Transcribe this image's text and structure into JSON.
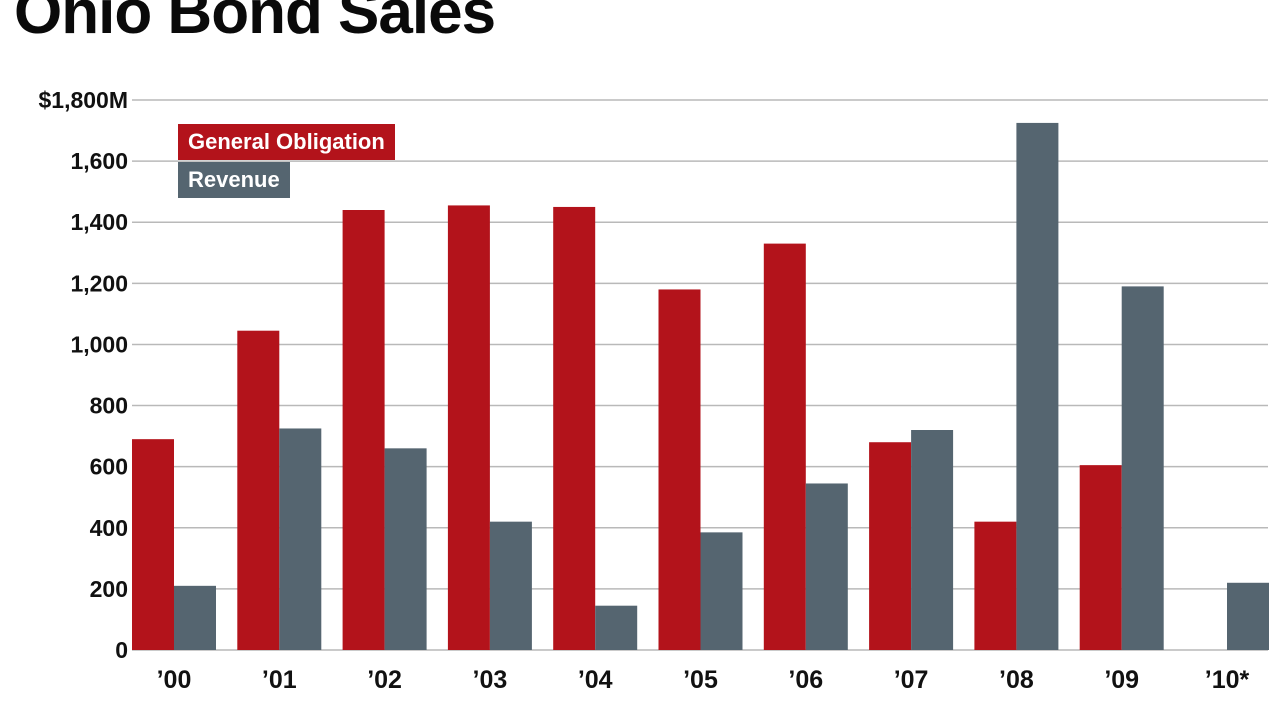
{
  "chart_data": {
    "type": "bar",
    "title": "Ohio Bond Sales",
    "xlabel": "",
    "ylabel": "",
    "ylim": [
      0,
      1800
    ],
    "yticks": [
      {
        "value": 0,
        "label": "0"
      },
      {
        "value": 200,
        "label": "200"
      },
      {
        "value": 400,
        "label": "400"
      },
      {
        "value": 600,
        "label": "600"
      },
      {
        "value": 800,
        "label": "800"
      },
      {
        "value": 1000,
        "label": "1,000"
      },
      {
        "value": 1200,
        "label": "1,200"
      },
      {
        "value": 1400,
        "label": "1,400"
      },
      {
        "value": 1600,
        "label": "1,600"
      },
      {
        "value": 1800,
        "label": "$1,800M"
      }
    ],
    "categories": [
      "’00",
      "’01",
      "’02",
      "’03",
      "’04",
      "’05",
      "’06",
      "’07",
      "’08",
      "’09",
      "’10*"
    ],
    "series": [
      {
        "name": "General Obligation",
        "color": "#b3131b",
        "values": [
          690,
          1045,
          1440,
          1455,
          1450,
          1180,
          1330,
          680,
          420,
          605,
          null
        ]
      },
      {
        "name": "Revenue",
        "color": "#556570",
        "values": [
          210,
          725,
          660,
          420,
          145,
          385,
          545,
          720,
          1725,
          1190,
          220
        ]
      }
    ],
    "grid": true,
    "legend_position": "top-left"
  }
}
